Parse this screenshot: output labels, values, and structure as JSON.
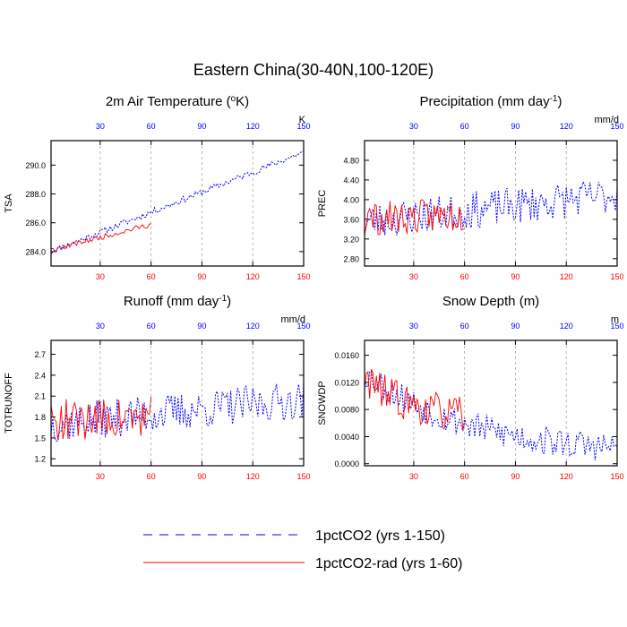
{
  "figure": {
    "title": "Eastern China(30-40N,100-120E)"
  },
  "legend": {
    "entries": [
      {
        "label": "1pctCO2 (yrs 1-150)",
        "color": "#0000ff",
        "dashed": true
      },
      {
        "label": "1pctCO2-rad (yrs 1-60)",
        "color": "#ff0000",
        "dashed": false
      }
    ]
  },
  "chart_data": [
    {
      "type": "line",
      "id": "tsa",
      "title": "2m Air Temperature (",
      "title_sup": "o",
      "title_end": "K)",
      "ylabel": "TSA",
      "unit": "K",
      "xlim": [
        1,
        150
      ],
      "ylim": [
        283.0,
        291.7
      ],
      "yticks": [
        284.0,
        286.0,
        288.0,
        290.0
      ],
      "ytick_labels": [
        "284.0",
        "286.0",
        "288.0",
        "290.0"
      ],
      "xticks": [
        30,
        60,
        90,
        120,
        150
      ],
      "bottom_tick_labels": [
        "30",
        "60",
        "90",
        "120",
        "150"
      ],
      "top_tick_labels": [
        "30",
        "60",
        "90",
        "120",
        "150"
      ],
      "gen": {
        "seed": 11,
        "start": 284.0,
        "end": 290.9,
        "noise": 0.45,
        "rad_start": 284.1,
        "rad_end": 285.9,
        "rad_noise": 0.35
      }
    },
    {
      "type": "line",
      "id": "prec",
      "title": "Precipitation (mm day",
      "title_sup": "-1",
      "title_end": ")",
      "ylabel": "PREC",
      "unit": "mm/d",
      "xlim": [
        1,
        150
      ],
      "ylim": [
        2.65,
        5.2
      ],
      "yticks": [
        2.8,
        3.2,
        3.6,
        4.0,
        4.4,
        4.8
      ],
      "ytick_labels": [
        "2.80",
        "3.20",
        "3.60",
        "4.00",
        "4.40",
        "4.80"
      ],
      "xticks": [
        30,
        60,
        90,
        120,
        150
      ],
      "bottom_tick_labels": [
        "30",
        "60",
        "90",
        "120",
        "150"
      ],
      "top_tick_labels": [
        "30",
        "60",
        "90",
        "120",
        "150"
      ],
      "gen": {
        "seed": 23,
        "start": 3.55,
        "end": 4.1,
        "noise": 0.75,
        "rad_start": 3.6,
        "rad_end": 3.7,
        "rad_noise": 0.7
      }
    },
    {
      "type": "line",
      "id": "runoff",
      "title": "Runoff (mm day",
      "title_sup": "-1",
      "title_end": ")",
      "ylabel": "TOTRUNOFF",
      "unit": "mm/d",
      "xlim": [
        1,
        150
      ],
      "ylim": [
        1.1,
        2.9
      ],
      "yticks": [
        1.2,
        1.5,
        1.8,
        2.1,
        2.4,
        2.7
      ],
      "ytick_labels": [
        "1.2",
        "1.5",
        "1.8",
        "2.1",
        "2.4",
        "2.7"
      ],
      "xticks": [
        30,
        60,
        90,
        120,
        150
      ],
      "bottom_tick_labels": [
        "30",
        "60",
        "90",
        "120",
        "150"
      ],
      "top_tick_labels": [
        "30",
        "60",
        "90",
        "120",
        "150"
      ],
      "gen": {
        "seed": 37,
        "start": 1.7,
        "end": 2.05,
        "noise": 0.55,
        "rad_start": 1.75,
        "rad_end": 1.8,
        "rad_noise": 0.6
      }
    },
    {
      "type": "line",
      "id": "snowdp",
      "title": "Snow Depth (m)",
      "title_sup": "",
      "title_end": "",
      "ylabel": "SNOWDP",
      "unit": "m",
      "xlim": [
        1,
        150
      ],
      "ylim": [
        -0.0003,
        0.0182
      ],
      "yticks": [
        0.0,
        0.004,
        0.008,
        0.012,
        0.016
      ],
      "ytick_labels": [
        "0.0000",
        "0.0040",
        "0.0080",
        "0.0120",
        "0.0160"
      ],
      "xticks": [
        30,
        60,
        90,
        120,
        150
      ],
      "bottom_tick_labels": [
        "30",
        "60",
        "90",
        "120",
        "150"
      ],
      "top_tick_labels": [
        "30",
        "60",
        "90",
        "120",
        "150"
      ],
      "gen": {
        "seed": 53,
        "start": 0.0135,
        "end": 0.0012,
        "noise": 0.0045,
        "rad_start": 0.0125,
        "rad_end": 0.006,
        "rad_noise": 0.0055,
        "floor": 0.0005,
        "decay": true
      }
    }
  ]
}
